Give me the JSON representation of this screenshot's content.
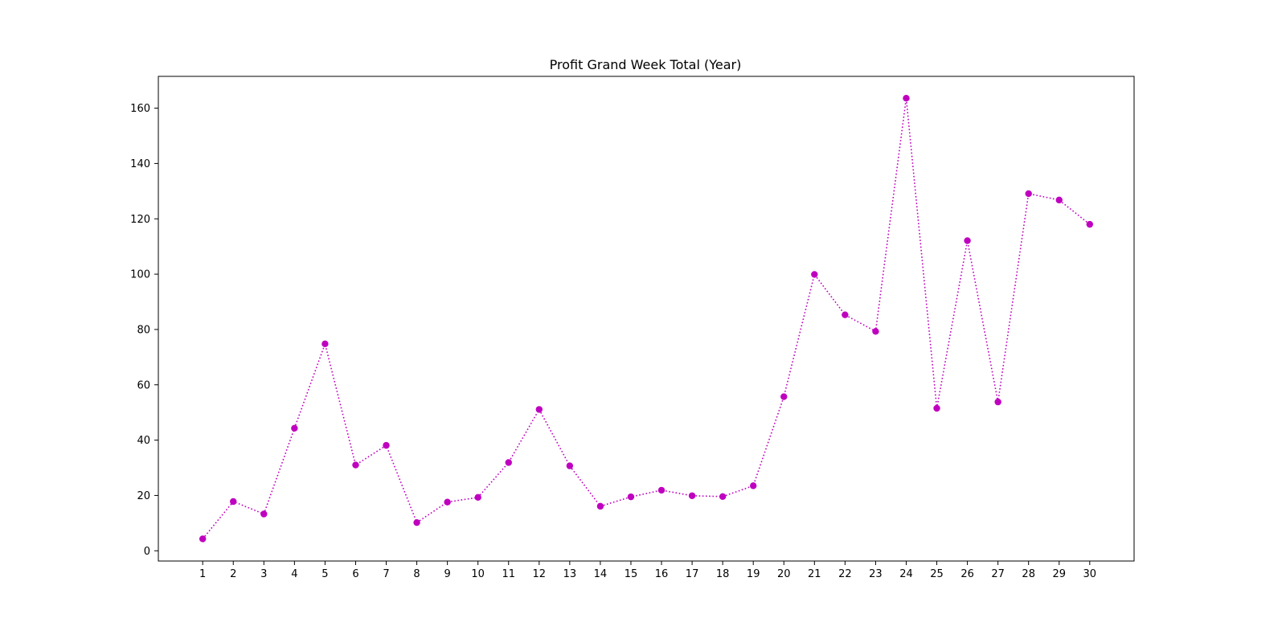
{
  "chart_data": {
    "type": "line",
    "title": "Profit Grand Week Total (Year)",
    "xlabel": "",
    "ylabel": "",
    "x": [
      1,
      2,
      3,
      4,
      5,
      6,
      7,
      8,
      9,
      10,
      11,
      12,
      13,
      14,
      15,
      16,
      17,
      18,
      19,
      20,
      21,
      22,
      23,
      24,
      25,
      26,
      27,
      28,
      29,
      30
    ],
    "xtick_labels": [
      "1",
      "2",
      "3",
      "4",
      "5",
      "6",
      "7",
      "8",
      "9",
      "10",
      "11",
      "12",
      "13",
      "14",
      "15",
      "16",
      "17",
      "18",
      "19",
      "20",
      "21",
      "22",
      "23",
      "24",
      "25",
      "26",
      "27",
      "28",
      "29",
      "30"
    ],
    "yticks": [
      0,
      20,
      40,
      60,
      80,
      100,
      120,
      140,
      160
    ],
    "ytick_labels": [
      "0",
      "20",
      "40",
      "60",
      "80",
      "100",
      "120",
      "140",
      "160"
    ],
    "xlim": [
      -0.45,
      31.45
    ],
    "ylim": [
      -3.7,
      171.5
    ],
    "grid": false,
    "legend": "none",
    "series": [
      {
        "color": "#bf00bf",
        "line_style": "dotted",
        "marker": "circle",
        "values": [
          4.3,
          17.8,
          13.3,
          44.3,
          74.8,
          31.0,
          38.1,
          10.2,
          17.6,
          19.3,
          31.9,
          51.1,
          30.7,
          16.1,
          19.5,
          21.9,
          19.9,
          19.6,
          23.5,
          55.7,
          99.9,
          85.3,
          79.3,
          163.6,
          51.5,
          112.1,
          53.8,
          129.1,
          126.8,
          118.0
        ]
      }
    ]
  }
}
